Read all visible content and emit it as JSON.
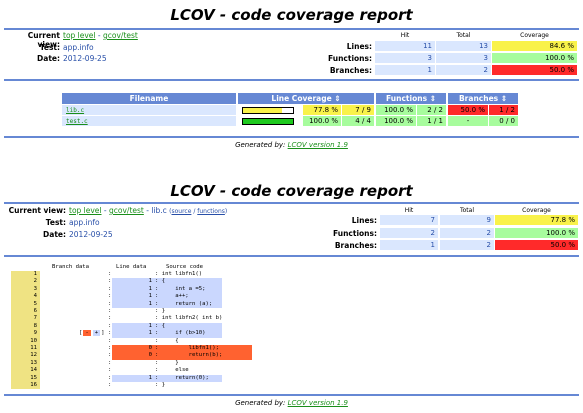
{
  "report1": {
    "title": "LCOV - code coverage report",
    "current_view_label": "Current view:",
    "current_view": {
      "top": "top level",
      "sep": " - ",
      "dir": "gcov/test"
    },
    "test_label": "Test:",
    "test_value": "app.info",
    "date_label": "Date:",
    "date_value": "2012-09-25",
    "col_hit": "Hit",
    "col_total": "Total",
    "col_coverage": "Coverage",
    "rows": [
      {
        "label": "Lines:",
        "hit": "11",
        "total": "13",
        "coverage": "84.6 %"
      },
      {
        "label": "Functions:",
        "hit": "3",
        "total": "3",
        "coverage": "100.0 %"
      },
      {
        "label": "Branches:",
        "hit": "1",
        "total": "2",
        "coverage": "50.0 %"
      }
    ],
    "table": {
      "headers": {
        "filename": "Filename",
        "line": "Line Coverage ⇕",
        "func": "Functions ⇕",
        "branch": "Branches ⇕"
      },
      "files": [
        {
          "name": "lib.c",
          "line_pct": "77.8 %",
          "line_frac": "7 / 9",
          "line_fill": 0.778,
          "func_pct": "100.0 %",
          "func_frac": "2 / 2",
          "br_pct": "50.0 %",
          "br_frac": "1 / 2"
        },
        {
          "name": "test.c",
          "line_pct": "100.0 %",
          "line_frac": "4 / 4",
          "line_fill": 1.0,
          "func_pct": "100.0 %",
          "func_frac": "1 / 1",
          "br_pct": "-",
          "br_frac": "0 / 0"
        }
      ]
    },
    "footer_prefix": "Generated by: ",
    "footer_link": "LCOV version 1.9"
  },
  "report2": {
    "title": "LCOV - code coverage report",
    "current_view_label": "Current view:",
    "current_view": {
      "top": "top level",
      "sep1": " - ",
      "dir": "gcov/test",
      "sep2": " - lib.c ",
      "paren_open": "(",
      "source": "source",
      "slash": " / ",
      "functions": "functions",
      "paren_close": ")"
    },
    "test_label": "Test:",
    "test_value": "app.info",
    "date_label": "Date:",
    "date_value": "2012-09-25",
    "col_hit": "Hit",
    "col_total": "Total",
    "col_coverage": "Coverage",
    "rows": [
      {
        "label": "Lines:",
        "hit": "7",
        "total": "9",
        "coverage": "77.8 %"
      },
      {
        "label": "Functions:",
        "hit": "2",
        "total": "2",
        "coverage": "100.0 %"
      },
      {
        "label": "Branches:",
        "hit": "1",
        "total": "2",
        "coverage": "50.0 %"
      }
    ],
    "code_headers": {
      "branch": "Branch data",
      "line": "Line data",
      "source": "Source code"
    },
    "lines": [
      {
        "n": "1",
        "cnt": "",
        "src": ": int libfn1()",
        "state": "none"
      },
      {
        "n": "2",
        "cnt": "1",
        "src": ": {",
        "state": "hit"
      },
      {
        "n": "3",
        "cnt": "1",
        "src": ":     int a =5;",
        "state": "hit"
      },
      {
        "n": "4",
        "cnt": "1",
        "src": ":     a++;",
        "state": "hit"
      },
      {
        "n": "5",
        "cnt": "1",
        "src": ":     return (a);",
        "state": "hit"
      },
      {
        "n": "6",
        "cnt": "",
        "src": ": }",
        "state": "none"
      },
      {
        "n": "7",
        "cnt": "",
        "src": ": int libfn2( int b)",
        "state": "none"
      },
      {
        "n": "8",
        "cnt": "1",
        "src": ": {",
        "state": "hit"
      },
      {
        "n": "9",
        "cnt": "1",
        "src": ":     if (b>10)",
        "state": "hit"
      },
      {
        "n": "10",
        "cnt": "",
        "src": ":     {",
        "state": "none"
      },
      {
        "n": "11",
        "cnt": "0",
        "src": ":         libfn1();",
        "state": "miss"
      },
      {
        "n": "12",
        "cnt": "0",
        "src": ":         return(b);",
        "state": "miss"
      },
      {
        "n": "13",
        "cnt": "",
        "src": ":     }",
        "state": "none"
      },
      {
        "n": "14",
        "cnt": "",
        "src": ":     else",
        "state": "none"
      },
      {
        "n": "15",
        "cnt": "1",
        "src": ":     return(0);",
        "state": "hit"
      },
      {
        "n": "16",
        "cnt": "",
        "src": ": }",
        "state": "none"
      }
    ],
    "branch_marks": {
      "line": "9",
      "open": "[",
      "minus": "-",
      "plus": "+",
      "close": "]"
    },
    "footer_prefix": "Generated by: ",
    "footer_link": "LCOV version 1.9"
  }
}
